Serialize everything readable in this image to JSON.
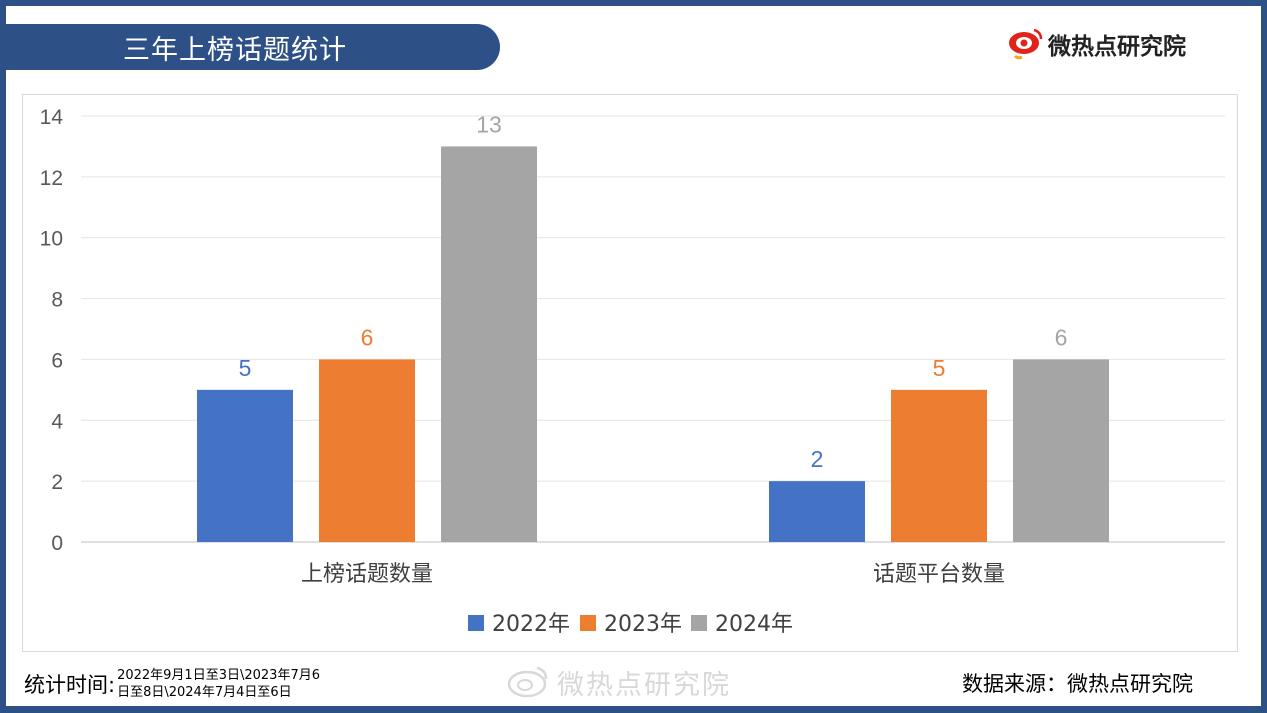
{
  "header": {
    "title": "三年上榜话题统计",
    "brand": "微热点研究院"
  },
  "footer": {
    "time_label": "统计时间:",
    "date_line1": "2022年9月1日至3日\\2023年7月6",
    "date_line2": "日至8日\\2024年7月4日至6日",
    "source_label": "数据来源：微热点研究院",
    "watermark": "微热点研究院"
  },
  "colors": {
    "frame": "#2d5086",
    "brand_red": "#e0241b",
    "series_2022": "#4472c4",
    "series_2023": "#ed7d31",
    "series_2024": "#a5a5a5"
  },
  "chart_data": {
    "type": "bar",
    "categories": [
      "上榜话题数量",
      "话题平台数量"
    ],
    "series": [
      {
        "name": "2022年",
        "values": [
          5,
          2
        ],
        "color": "#4472c4"
      },
      {
        "name": "2023年",
        "values": [
          6,
          5
        ],
        "color": "#ed7d31"
      },
      {
        "name": "2024年",
        "values": [
          13,
          6
        ],
        "color": "#a5a5a5"
      }
    ],
    "yticks": [
      "0",
      "2",
      "4",
      "6",
      "8",
      "10",
      "12",
      "14"
    ],
    "ylim": [
      0,
      14
    ],
    "grid": true,
    "legend": "bottom"
  }
}
